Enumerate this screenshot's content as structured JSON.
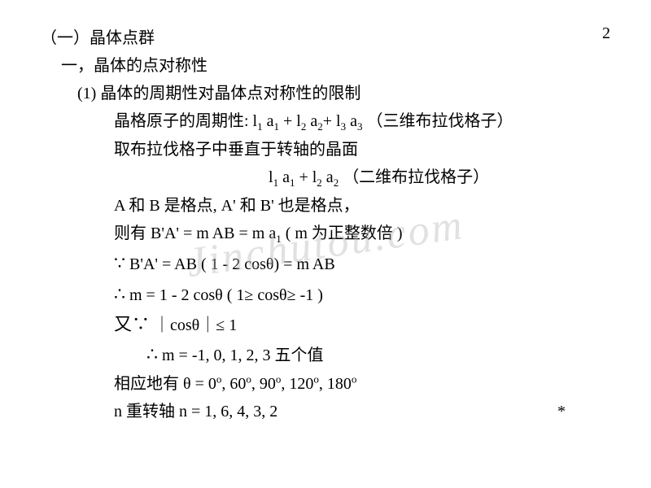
{
  "page": {
    "number": "2",
    "background_color": "#ffffff",
    "text_color": "#000000",
    "font_family": "SimSun, Times New Roman, serif",
    "font_size_body": 20,
    "font_size_sub": 13,
    "line_height": 1.7
  },
  "watermark": {
    "text": "Jinchutou.com",
    "color": "rgba(180, 180, 180, 0.4)",
    "font_size": 52,
    "rotation_deg": -8,
    "font_style": "italic"
  },
  "heading": {
    "section_label": "（一）晶体点群",
    "subsection_label": "一，晶体的点对称性",
    "item_label": "(1) 晶体的周期性对晶体点对称性的限制"
  },
  "lines": {
    "l1_prefix": "晶格原子的周期性: l",
    "l1_sub1": "1",
    "l1_mid1": " a",
    "l1_sub2": "1",
    "l1_mid2": " + l",
    "l1_sub3": "2",
    "l1_mid3": " a",
    "l1_sub4": "2",
    "l1_mid4": "+ l",
    "l1_sub5": "3",
    "l1_mid5": " a",
    "l1_sub6": "3",
    "l1_suffix": " （三维布拉伐格子）",
    "l2": "取布拉伐格子中垂直于转轴的晶面",
    "l3_prefix": "l",
    "l3_sub1": "1",
    "l3_mid1": " a",
    "l3_sub2": "1",
    "l3_mid2": " + l",
    "l3_sub3": "2",
    "l3_mid3": " a",
    "l3_sub4": "2",
    "l3_suffix": "    （二维布拉伐格子）",
    "l4": "A 和 B 是格点,  A' 和 B' 也是格点，",
    "l5_prefix": "则有  B'A'  =  m AB  =  m a",
    "l5_sub": "1",
    "l5_suffix": "        ( m 为正整数倍 )",
    "l6_because": "∵",
    "l6_text": "   B'A'  =  AB ( 1 -  2 cosθ) =  m AB",
    "l7_therefore": "∴",
    "l7_text": "   m  =  1 -  2 cosθ    ( 1≥ cosθ≥ -1 )",
    "l8_because": "又∵",
    "l8_text": " ｜cosθ｜≤ 1",
    "l9_therefore": "∴",
    "l9_text": "   m  =  -1,  0,  1,  2,  3   五个值",
    "l10_prefix": "相应地有    θ  =   0",
    "l10_sup1": "o",
    "l10_mid1": ", 60",
    "l10_sup2": "o",
    "l10_mid2": ", 90",
    "l10_sup3": "o",
    "l10_mid3": ", 120",
    "l10_sup4": "o",
    "l10_mid4": ", 180",
    "l10_sup5": "o",
    "l11": "n 重转轴     n  =   1,     6,     4,     3,     2",
    "star": "*"
  }
}
